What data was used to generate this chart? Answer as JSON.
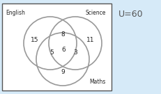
{
  "title": "U=60",
  "labels": {
    "english": "English",
    "science": "Science",
    "maths": "Maths"
  },
  "values": {
    "english_only": "15",
    "english_science": "8",
    "science_only": "11",
    "english_maths": "5",
    "center": "6",
    "science_maths": "3",
    "maths_only": "9"
  },
  "circle_color": "#999999",
  "bg_panel_color": "#d6eaf8",
  "box_facecolor": "#ffffff",
  "box_edgecolor": "#555555",
  "text_color": "#222222",
  "title_color": "#555555",
  "figsize": [
    2.31,
    1.35
  ],
  "dpi": 100
}
